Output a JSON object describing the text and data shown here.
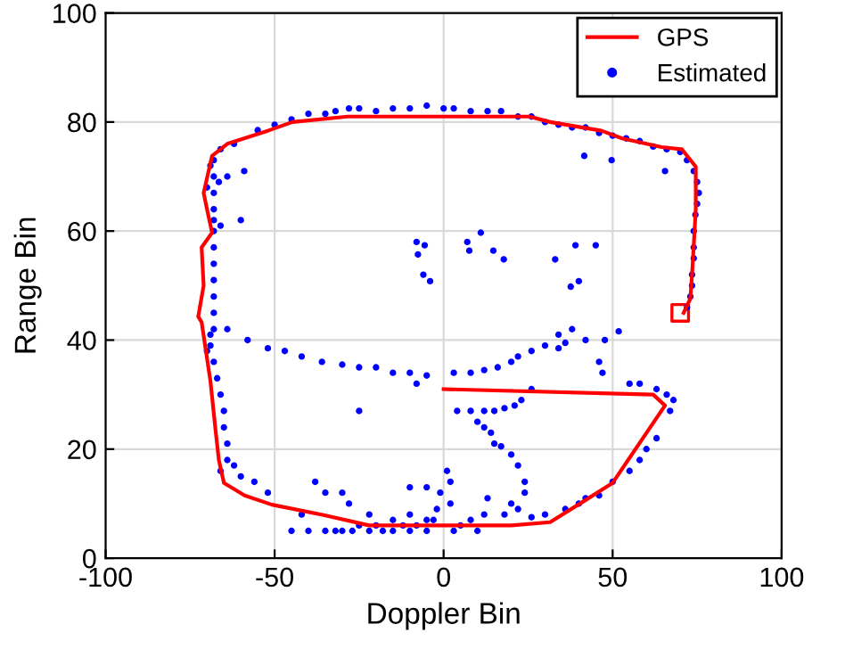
{
  "chart_data": {
    "type": "scatter",
    "xlabel": "Doppler Bin",
    "ylabel": "Range Bin",
    "xlim": [
      -100,
      100
    ],
    "ylim": [
      0,
      100
    ],
    "xticks": [
      -100,
      -50,
      0,
      50,
      100
    ],
    "yticks": [
      0,
      20,
      40,
      60,
      80,
      100
    ],
    "grid": true,
    "legend": "top right",
    "series": [
      {
        "name": "GPS",
        "type": "line",
        "color": "#ff0000",
        "marker": "none",
        "x": [
          0,
          62,
          65.5,
          50,
          41.6,
          31.5,
          20,
          -22,
          -35.5,
          -50.8,
          -58.9,
          -65,
          -66.5,
          -67.5,
          -69,
          -71.6,
          -72.6,
          -71,
          -71.6,
          -68.5,
          -70,
          -71,
          -68.5,
          -64,
          -52,
          -44.7,
          -28.4,
          25.4,
          31.5,
          46.7,
          52.8,
          64.5,
          70.5,
          74.6,
          74.6,
          73.6,
          73,
          71
        ],
        "values": [
          31,
          30,
          28,
          13.8,
          10.5,
          6.6,
          6,
          6,
          7.9,
          9.8,
          11.5,
          13.8,
          18,
          23.6,
          32.5,
          43.3,
          44.3,
          50,
          57,
          59.7,
          64,
          67,
          73.8,
          76,
          78.4,
          80,
          81,
          81,
          80,
          78.4,
          77,
          75.4,
          75,
          71.8,
          64,
          53,
          47.6,
          45
        ]
      },
      {
        "type": "scatter",
        "color": "#ff0000",
        "marker": "square",
        "x": [
          70
        ],
        "values": [
          45
        ]
      },
      {
        "name": "Estimated",
        "color": "#0000ff",
        "marker": "circle",
        "x": [
          -55,
          -50,
          -45,
          -40,
          -35,
          -32,
          -28,
          -25,
          -20,
          -15,
          -10,
          -5,
          0,
          3,
          8,
          13,
          17,
          22,
          26,
          30,
          34,
          38,
          42,
          46,
          50,
          54,
          58,
          62,
          66,
          70,
          72,
          74,
          75,
          75.5,
          75,
          74.5,
          74,
          74,
          74,
          73.5,
          73.5,
          73,
          72,
          -62,
          -66,
          -68,
          -69,
          -70,
          -68,
          -66,
          -60,
          -68,
          -68,
          -68,
          -68,
          -68,
          -68,
          -68,
          -68,
          -68,
          -68,
          -69,
          -68,
          -67,
          -66,
          -65,
          -65,
          -64,
          -64,
          -66,
          -69,
          -70,
          -64,
          -58,
          -52,
          -47,
          -42,
          -36,
          -30,
          -25,
          -20,
          -15,
          -10,
          -5,
          -8,
          -25,
          3,
          8,
          12,
          16,
          20,
          22,
          26,
          30,
          34,
          38,
          42,
          46,
          47,
          34,
          36,
          4,
          8,
          12,
          15,
          18,
          21,
          23,
          26,
          10,
          12,
          14,
          15,
          17,
          20,
          22,
          24,
          24,
          20,
          18,
          22,
          13,
          12,
          55,
          58,
          63,
          66,
          68,
          67,
          63,
          60,
          58,
          55,
          50,
          46,
          42,
          40,
          36,
          30,
          26,
          -45,
          -40,
          -35,
          -32,
          -30,
          -27,
          -25,
          -22,
          -20,
          -18,
          -15,
          -12,
          -10,
          -8,
          -5,
          -3,
          -2,
          -1,
          -28,
          -30,
          -35,
          -38,
          -15,
          -10,
          -5,
          3,
          5,
          8,
          10,
          2,
          2,
          1,
          -52,
          -56,
          -60,
          -62,
          -10,
          -5,
          -22,
          -42,
          7,
          11,
          7.6,
          14.7,
          17.8,
          33,
          39,
          45,
          40,
          37.6,
          41.6,
          49.7,
          65.5,
          -8,
          -5.6,
          -7.6,
          -6,
          -4,
          -59,
          -64,
          -66.5,
          51.8,
          47.7
        ],
        "values": [
          78.5,
          79.5,
          80.5,
          81.5,
          81.5,
          82,
          82.5,
          82.5,
          82,
          82.5,
          82.5,
          83,
          82.5,
          82.5,
          82,
          82,
          82,
          81,
          81,
          80,
          79.5,
          79,
          79,
          78,
          77.5,
          77,
          76.5,
          75.5,
          75,
          74.5,
          73,
          71,
          69,
          67,
          65,
          63,
          60,
          57,
          55,
          52,
          50,
          48,
          46,
          76,
          75,
          73,
          72,
          68,
          62,
          61,
          62,
          70,
          67,
          64,
          60,
          57,
          54,
          51,
          48,
          45,
          42,
          39,
          36,
          33,
          30,
          27,
          24,
          21,
          18,
          16,
          41,
          38,
          42,
          40,
          38.5,
          38,
          37,
          36,
          35.5,
          35,
          35,
          34,
          34,
          33.5,
          32,
          27,
          34,
          34,
          34.5,
          35,
          36,
          37,
          38,
          39,
          41,
          42,
          40,
          36,
          34,
          38.5,
          39.5,
          27,
          27,
          27,
          27,
          27.5,
          28,
          29,
          31,
          25,
          24,
          23,
          21,
          20.5,
          19,
          17,
          14,
          12,
          10,
          8,
          9,
          11,
          8,
          32,
          32,
          31,
          30,
          29,
          27,
          22,
          20,
          18,
          16,
          14,
          11.5,
          11,
          10,
          9,
          8,
          7.5,
          5,
          5,
          5,
          5,
          5,
          5,
          6,
          5,
          6,
          5,
          5,
          6,
          5,
          6,
          5,
          7,
          9,
          12,
          10,
          12,
          12,
          14,
          7,
          8,
          7,
          5,
          6,
          7,
          5,
          10,
          14,
          16,
          12,
          14,
          15,
          17,
          13,
          13,
          8,
          8,
          58,
          59.7,
          56.4,
          56.4,
          54.8,
          54.8,
          57.4,
          57.4,
          50.8,
          49.8,
          73.8,
          73,
          71,
          58,
          57.4,
          55.7,
          52,
          50.8,
          71,
          70,
          69,
          41.6,
          40
        ]
      }
    ]
  }
}
